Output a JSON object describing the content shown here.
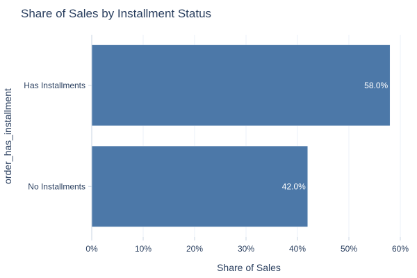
{
  "chart_data": {
    "type": "bar",
    "orientation": "horizontal",
    "title": "Share of Sales by Installment Status",
    "xlabel": "Share of Sales",
    "ylabel": "order_has_installment",
    "categories": [
      "Has Installments",
      "No Installments"
    ],
    "values": [
      58.0,
      42.0
    ],
    "data_labels": [
      "58.0%",
      "42.0%"
    ],
    "xlim": [
      0,
      60
    ],
    "x_ticks": [
      0,
      10,
      20,
      30,
      40,
      50,
      60
    ],
    "x_tick_labels": [
      "0%",
      "10%",
      "20%",
      "30%",
      "40%",
      "50%",
      "60%"
    ],
    "grid": true,
    "legend": false,
    "colors": {
      "bar_fill": "#4c78a8",
      "bar_stroke": "#ffffff",
      "grid": "#ebf0f8",
      "axis_line": "#c8d4e3",
      "text": "#2a3f5f"
    }
  }
}
